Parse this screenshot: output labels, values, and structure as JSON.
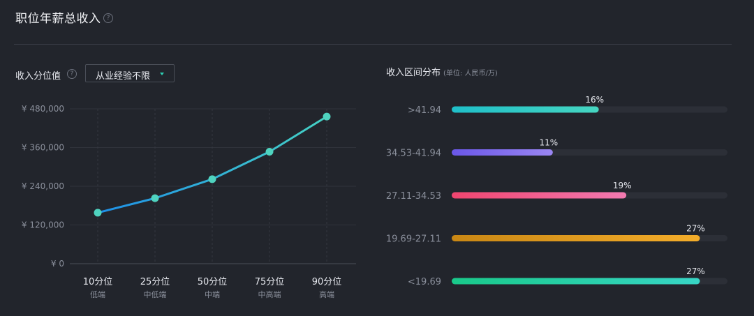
{
  "header": {
    "title": "职位年薪总收入",
    "help_glyph": "?"
  },
  "left_panel": {
    "title": "收入分位值",
    "help_glyph": "?",
    "dropdown": {
      "selected": "从业经验不限"
    }
  },
  "right_panel": {
    "title": "收入区间分布",
    "unit": "(单位: 人民币/万)"
  },
  "colors": {
    "line_start": "#1e90e8",
    "line_end": "#45d1c4",
    "point": "#4fd3bf",
    "bar_track": "#2c2f37"
  },
  "chart_data": [
    {
      "type": "line",
      "title": "",
      "categories": [
        "10分位",
        "25分位",
        "50分位",
        "75分位",
        "90分位"
      ],
      "category_sublabels": [
        "低端",
        "中低端",
        "中端",
        "中高端",
        "高端"
      ],
      "values": [
        158000,
        203000,
        262000,
        347000,
        456000
      ],
      "ylim": [
        0,
        480000
      ],
      "yticks": [
        0,
        120000,
        240000,
        360000,
        480000
      ],
      "ytick_labels": [
        "¥ 0",
        "¥ 120,000",
        "¥ 240,000",
        "¥ 360,000",
        "¥ 480,000"
      ],
      "grid": true
    },
    {
      "type": "bar",
      "orientation": "horizontal",
      "categories": [
        ">41.94",
        "34.53-41.94",
        "27.11-34.53",
        "19.69-27.11",
        "<19.69"
      ],
      "values": [
        16,
        11,
        19,
        27,
        27
      ],
      "value_labels": [
        "16%",
        "11%",
        "19%",
        "27%",
        "27%"
      ],
      "xlim": [
        0,
        30
      ],
      "bar_colors": [
        [
          "#1fbfc9",
          "#46d6c1"
        ],
        [
          "#6a57e8",
          "#9a86f2"
        ],
        [
          "#f0456f",
          "#f37ab1"
        ],
        [
          "#c98714",
          "#f4ad2a"
        ],
        [
          "#19c98a",
          "#38d6c6"
        ]
      ]
    }
  ]
}
